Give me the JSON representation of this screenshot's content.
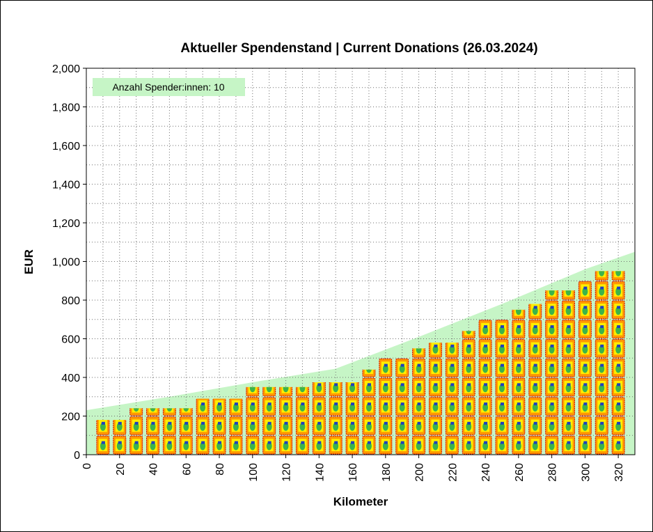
{
  "chart_data": {
    "type": "area",
    "title": "Aktueller Spendenstand | Current Donations (26.03.2024)",
    "xlabel": "Kilometer",
    "ylabel": "EUR",
    "xlim": [
      0,
      330
    ],
    "ylim": [
      0,
      2000
    ],
    "x_ticks": [
      0,
      20,
      40,
      60,
      80,
      100,
      120,
      140,
      160,
      180,
      200,
      220,
      240,
      260,
      280,
      300,
      320
    ],
    "x_tick_labels": [
      "0",
      "20",
      "40",
      "60",
      "80",
      "100",
      "120",
      "140",
      "160",
      "180",
      "200",
      "220",
      "240",
      "260",
      "280",
      "300",
      "320"
    ],
    "y_ticks": [
      0,
      200,
      400,
      600,
      800,
      1000,
      1200,
      1400,
      1600,
      1800,
      2000
    ],
    "y_tick_labels": [
      "0",
      "200",
      "400",
      "600",
      "800",
      "1,000",
      "1,200",
      "1,400",
      "1,600",
      "1,800",
      "2,000"
    ],
    "grid": true,
    "grid_step": {
      "x": 10,
      "y": 100
    },
    "annotation": "Anzahl Spender:innen: 10",
    "area_series": {
      "color": "#c6f5c6",
      "x": [
        0,
        50,
        100,
        150,
        200,
        250,
        300,
        330
      ],
      "y": [
        230,
        300,
        375,
        445,
        610,
        780,
        960,
        1050
      ]
    },
    "bar_series": {
      "marker": "coin-stack-icon",
      "x": [
        10,
        20,
        30,
        40,
        50,
        60,
        70,
        80,
        90,
        100,
        110,
        120,
        130,
        140,
        150,
        160,
        170,
        180,
        190,
        200,
        210,
        220,
        230,
        240,
        250,
        260,
        270,
        280,
        290,
        300,
        310,
        320
      ],
      "values": [
        180,
        180,
        240,
        240,
        240,
        240,
        290,
        290,
        290,
        350,
        350,
        350,
        350,
        375,
        375,
        375,
        440,
        500,
        500,
        550,
        580,
        580,
        640,
        700,
        700,
        750,
        780,
        850,
        850,
        900,
        950,
        950
      ]
    },
    "colors": {
      "area": "#c6f5c6",
      "legend_bg": "#c6f5c6",
      "coin_orange": "#ff9900",
      "coin_red": "#d40000",
      "coin_yellow": "#ffee00",
      "coin_green": "#3cb44a",
      "coin_blue": "#1f3fbf"
    }
  }
}
